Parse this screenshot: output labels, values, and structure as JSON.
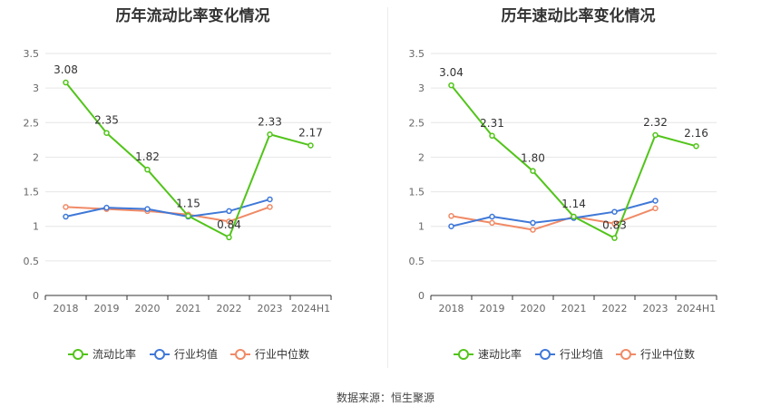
{
  "colors": {
    "current_ratio": "#52c41a",
    "industry_avg": "#3f78d8",
    "industry_median": "#f08a66",
    "grid": "#e6e6e6",
    "axis": "#333333"
  },
  "legend_icon": "circle-line-icon",
  "source": "数据来源：恒生聚源",
  "chart_data": [
    {
      "type": "line",
      "title": "历年流动比率变化情况",
      "categories": [
        "2018",
        "2019",
        "2020",
        "2021",
        "2022",
        "2023",
        "2024H1"
      ],
      "ylim": [
        0,
        3.5
      ],
      "y_ticks": [
        "0",
        "0.5",
        "1",
        "1.5",
        "2",
        "2.5",
        "3",
        "3.5"
      ],
      "grid": true,
      "legend_position": "bottom",
      "series": [
        {
          "name": "流动比率",
          "values": [
            3.08,
            2.35,
            1.82,
            1.15,
            0.84,
            2.33,
            2.17
          ],
          "labels": [
            "3.08",
            "2.35",
            "1.82",
            "1.15",
            "0.84",
            "2.33",
            "2.17"
          ]
        },
        {
          "name": "行业均值",
          "values": [
            1.14,
            1.27,
            1.25,
            1.14,
            1.22,
            1.39,
            null
          ]
        },
        {
          "name": "行业中位数",
          "values": [
            1.28,
            1.25,
            1.22,
            1.17,
            1.07,
            1.28,
            null
          ]
        }
      ]
    },
    {
      "type": "line",
      "title": "历年速动比率变化情况",
      "categories": [
        "2018",
        "2019",
        "2020",
        "2021",
        "2022",
        "2023",
        "2024H1"
      ],
      "ylim": [
        0,
        3.5
      ],
      "y_ticks": [
        "0",
        "0.5",
        "1",
        "1.5",
        "2",
        "2.5",
        "3",
        "3.5"
      ],
      "grid": true,
      "legend_position": "bottom",
      "series": [
        {
          "name": "速动比率",
          "values": [
            3.04,
            2.31,
            1.8,
            1.14,
            0.83,
            2.32,
            2.16
          ],
          "labels": [
            "3.04",
            "2.31",
            "1.80",
            "1.14",
            "0.83",
            "2.32",
            "2.16"
          ]
        },
        {
          "name": "行业均值",
          "values": [
            1.0,
            1.14,
            1.05,
            1.12,
            1.21,
            1.37,
            null
          ]
        },
        {
          "name": "行业中位数",
          "values": [
            1.15,
            1.05,
            0.95,
            1.14,
            1.04,
            1.26,
            null
          ]
        }
      ]
    }
  ]
}
